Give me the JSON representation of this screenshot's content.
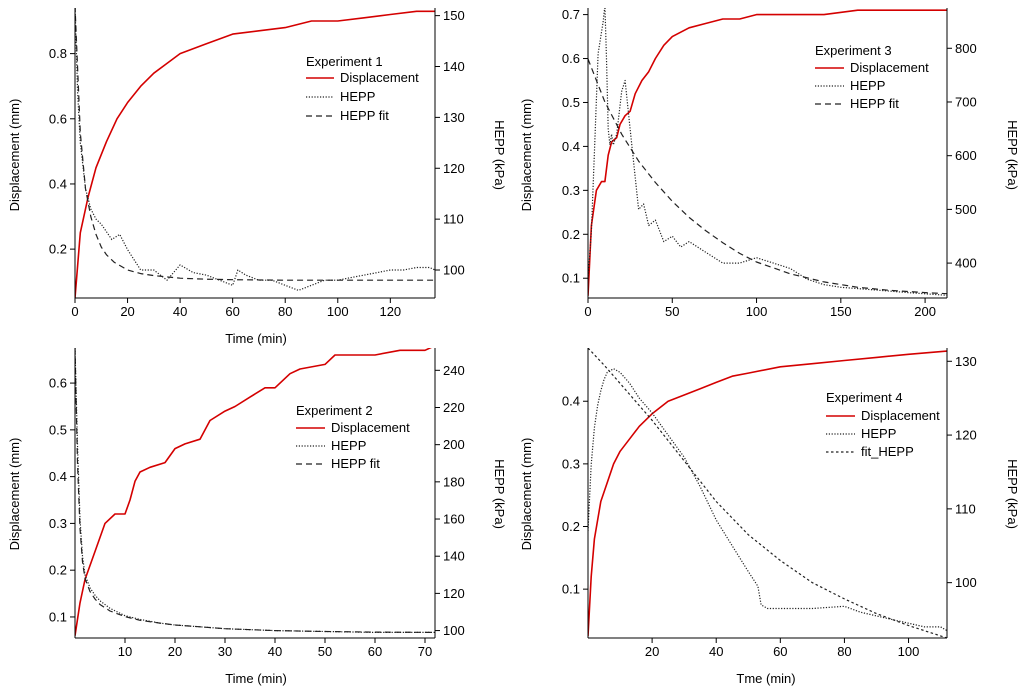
{
  "colors": {
    "displacement": "#d40000",
    "hepp": "#222222",
    "axis": "#000000"
  },
  "chart_data": [
    {
      "type": "line",
      "title": "Experiment 1",
      "xlabel": "Time (min)",
      "ylabel": "Displacement (mm)",
      "y2label": "HEPP (kPa)",
      "xlim": [
        0,
        137
      ],
      "ylim": [
        0.05,
        0.94
      ],
      "y2lim": [
        94.5,
        151.5
      ],
      "xticks": [
        0,
        20,
        40,
        60,
        80,
        100,
        120
      ],
      "yticks": [
        0.2,
        0.4,
        0.6,
        0.8
      ],
      "y2ticks": [
        100,
        110,
        120,
        130,
        140,
        150
      ],
      "legend_labels": [
        "Displacement",
        "HEPP",
        "HEPP fit"
      ],
      "series": [
        {
          "name": "Displacement",
          "axis": "left",
          "style": "solid",
          "x": [
            0,
            2,
            5,
            8,
            12,
            16,
            20,
            25,
            30,
            35,
            40,
            50,
            60,
            70,
            80,
            90,
            100,
            110,
            120,
            130,
            137
          ],
          "y": [
            0.05,
            0.25,
            0.36,
            0.45,
            0.53,
            0.6,
            0.65,
            0.7,
            0.74,
            0.77,
            0.8,
            0.83,
            0.86,
            0.87,
            0.88,
            0.9,
            0.9,
            0.91,
            0.92,
            0.93,
            0.93
          ]
        },
        {
          "name": "HEPP",
          "axis": "right",
          "style": "dotted",
          "x": [
            0,
            1,
            2,
            4,
            6,
            8,
            10,
            14,
            17,
            20,
            25,
            30,
            35,
            40,
            45,
            50,
            55,
            60,
            62,
            65,
            70,
            75,
            80,
            85,
            90,
            95,
            100,
            105,
            110,
            115,
            120,
            125,
            130,
            135,
            137
          ],
          "y": [
            152,
            135,
            125,
            116,
            112,
            110,
            109,
            106,
            107,
            104,
            100,
            100,
            98,
            101,
            99.5,
            99,
            98,
            97,
            100,
            99,
            98,
            98,
            97,
            96,
            97,
            98,
            98,
            98.5,
            99,
            99.5,
            100,
            100,
            100.5,
            100.5,
            100
          ]
        },
        {
          "name": "HEPP fit",
          "axis": "right",
          "style": "dashed",
          "x": [
            0,
            2,
            4,
            6,
            8,
            10,
            12,
            15,
            20,
            25,
            30,
            40,
            50,
            60,
            80,
            100,
            120,
            137
          ],
          "y": [
            152,
            127,
            116,
            110.5,
            107,
            104.5,
            103,
            101.5,
            100,
            99.3,
            98.9,
            98.4,
            98.2,
            98.1,
            98,
            98,
            98,
            98
          ]
        }
      ]
    },
    {
      "type": "line",
      "title": "Experiment 3",
      "xlabel": "",
      "ylabel": "Displacement (mm)",
      "y2label": "HEPP (kPa)",
      "xlim": [
        0,
        213
      ],
      "ylim": [
        0.055,
        0.715
      ],
      "y2lim": [
        335,
        875
      ],
      "xticks": [
        0,
        50,
        100,
        150,
        200
      ],
      "yticks": [
        0.1,
        0.2,
        0.3,
        0.4,
        0.5,
        0.6,
        0.7
      ],
      "y2ticks": [
        400,
        500,
        600,
        700,
        800
      ],
      "legend_labels": [
        "Displacement",
        "HEPP",
        "HEPP fit"
      ],
      "series": [
        {
          "name": "Displacement",
          "axis": "left",
          "style": "solid",
          "x": [
            0,
            2,
            5,
            8,
            10,
            12,
            14,
            17,
            19,
            22,
            25,
            28,
            32,
            36,
            40,
            45,
            50,
            55,
            60,
            70,
            80,
            90,
            100,
            120,
            140,
            160,
            180,
            200,
            213
          ],
          "y": [
            0.06,
            0.22,
            0.3,
            0.32,
            0.32,
            0.38,
            0.41,
            0.42,
            0.45,
            0.47,
            0.48,
            0.52,
            0.55,
            0.57,
            0.6,
            0.63,
            0.65,
            0.66,
            0.67,
            0.68,
            0.69,
            0.69,
            0.7,
            0.7,
            0.7,
            0.71,
            0.71,
            0.71,
            0.71
          ]
        },
        {
          "name": "HEPP",
          "axis": "right",
          "style": "dotted",
          "x": [
            0,
            2,
            4,
            6,
            8,
            9,
            10,
            11,
            12,
            13,
            14,
            15,
            17,
            20,
            22,
            25,
            28,
            30,
            33,
            36,
            40,
            45,
            50,
            55,
            60,
            70,
            80,
            90,
            100,
            110,
            120,
            130,
            140,
            150,
            170,
            190,
            213
          ],
          "y": [
            370,
            460,
            620,
            790,
            830,
            850,
            880,
            780,
            650,
            620,
            640,
            620,
            640,
            720,
            740,
            650,
            560,
            500,
            510,
            470,
            480,
            440,
            450,
            430,
            440,
            420,
            400,
            400,
            410,
            400,
            390,
            370,
            360,
            355,
            350,
            345,
            340
          ]
        },
        {
          "name": "HEPP fit",
          "axis": "right",
          "style": "dashed",
          "x": [
            0,
            10,
            20,
            30,
            40,
            50,
            60,
            70,
            80,
            90,
            100,
            120,
            140,
            160,
            180,
            200,
            213
          ],
          "y": [
            780,
            700,
            640,
            590,
            550,
            515,
            485,
            460,
            438,
            418,
            402,
            380,
            365,
            355,
            349,
            345,
            343
          ]
        }
      ]
    },
    {
      "type": "line",
      "title": "Experiment 2",
      "xlabel": "Time (min)",
      "ylabel": "Displacement (mm)",
      "y2label": "HEPP (kPa)",
      "xlim": [
        0,
        72
      ],
      "ylim": [
        0.055,
        0.675
      ],
      "y2lim": [
        96,
        252
      ],
      "xticks": [
        10,
        20,
        30,
        40,
        50,
        60,
        70
      ],
      "yticks": [
        0.1,
        0.2,
        0.3,
        0.4,
        0.5,
        0.6
      ],
      "y2ticks": [
        100,
        120,
        140,
        160,
        180,
        200,
        220,
        240
      ],
      "legend_labels": [
        "Displacement",
        "HEPP",
        "HEPP fit"
      ],
      "series": [
        {
          "name": "Displacement",
          "axis": "left",
          "style": "solid",
          "x": [
            0,
            1,
            2,
            4,
            6,
            8,
            10,
            11,
            12,
            13,
            15,
            18,
            20,
            22,
            25,
            27,
            30,
            32,
            35,
            38,
            40,
            43,
            45,
            50,
            52,
            55,
            60,
            65,
            68,
            70,
            72
          ],
          "y": [
            0.06,
            0.13,
            0.18,
            0.24,
            0.3,
            0.32,
            0.32,
            0.35,
            0.39,
            0.41,
            0.42,
            0.43,
            0.46,
            0.47,
            0.48,
            0.52,
            0.54,
            0.55,
            0.57,
            0.59,
            0.59,
            0.62,
            0.63,
            0.64,
            0.66,
            0.66,
            0.66,
            0.67,
            0.67,
            0.67,
            0.68
          ]
        },
        {
          "name": "HEPP",
          "axis": "right",
          "style": "dotted",
          "x": [
            0,
            0.5,
            1,
            1.5,
            2,
            3,
            4,
            5,
            7,
            10,
            13,
            17,
            20,
            25,
            30,
            40,
            50,
            60,
            70,
            72
          ],
          "y": [
            252,
            200,
            160,
            140,
            130,
            123,
            119,
            116,
            112,
            108,
            106,
            104,
            103,
            102,
            101,
            100,
            99.5,
            99,
            99,
            99
          ]
        },
        {
          "name": "HEPP fit",
          "axis": "right",
          "style": "dashed",
          "x": [
            0,
            0.5,
            1,
            1.5,
            2,
            3,
            4,
            5,
            7,
            10,
            13,
            17,
            20,
            25,
            30,
            40,
            50,
            60,
            72
          ],
          "y": [
            252,
            190,
            155,
            137,
            128,
            121,
            117,
            114,
            110.5,
            107.5,
            105.5,
            104,
            103,
            102,
            101,
            100,
            99.5,
            99.2,
            99
          ]
        }
      ]
    },
    {
      "type": "line",
      "title": "Experiment 4",
      "xlabel": "Tme (min)",
      "ylabel": "Displacement (mm)",
      "y2label": "HEPP (kPa)",
      "xlim": [
        0,
        112
      ],
      "ylim": [
        0.022,
        0.485
      ],
      "y2lim": [
        92.5,
        131.8
      ],
      "xticks": [
        20,
        40,
        60,
        80,
        100
      ],
      "yticks": [
        0.1,
        0.2,
        0.3,
        0.4
      ],
      "y2ticks": [
        100,
        110,
        120,
        130
      ],
      "legend_labels": [
        "Displacement",
        "HEPP",
        "fit_HEPP"
      ],
      "series": [
        {
          "name": "Displacement",
          "axis": "left",
          "style": "solid",
          "x": [
            0,
            1,
            2,
            4,
            6,
            8,
            10,
            13,
            16,
            20,
            25,
            30,
            35,
            40,
            45,
            50,
            60,
            70,
            80,
            90,
            100,
            112
          ],
          "y": [
            0.025,
            0.12,
            0.18,
            0.24,
            0.27,
            0.3,
            0.32,
            0.34,
            0.36,
            0.38,
            0.4,
            0.41,
            0.42,
            0.43,
            0.44,
            0.445,
            0.455,
            0.46,
            0.465,
            0.47,
            0.475,
            0.48
          ]
        },
        {
          "name": "HEPP",
          "axis": "right",
          "style": "dotted",
          "x": [
            0,
            1,
            2,
            3,
            4,
            5,
            6,
            8,
            10,
            13,
            16,
            20,
            25,
            30,
            35,
            40,
            45,
            50,
            53,
            54,
            56,
            60,
            70,
            80,
            85,
            90,
            95,
            100,
            105,
            110,
            112
          ],
          "y": [
            107,
            116,
            121,
            124,
            126,
            127.5,
            128.5,
            129,
            128.5,
            127,
            125,
            123,
            120,
            117,
            113,
            108.5,
            105,
            101.5,
            99.5,
            97,
            96.5,
            96.5,
            96.5,
            96.8,
            96,
            95.5,
            95,
            94.5,
            94,
            94,
            93.5
          ]
        },
        {
          "name": "fit_HEPP",
          "axis": "right",
          "style": "dotted2",
          "x": [
            0,
            5,
            10,
            15,
            20,
            30,
            40,
            50,
            60,
            70,
            80,
            90,
            100,
            112
          ],
          "y": [
            131.8,
            129.5,
            127,
            124.5,
            122,
            116.5,
            111,
            106.5,
            103,
            100,
            97.8,
            95.8,
            94.2,
            92.5
          ]
        }
      ]
    }
  ]
}
